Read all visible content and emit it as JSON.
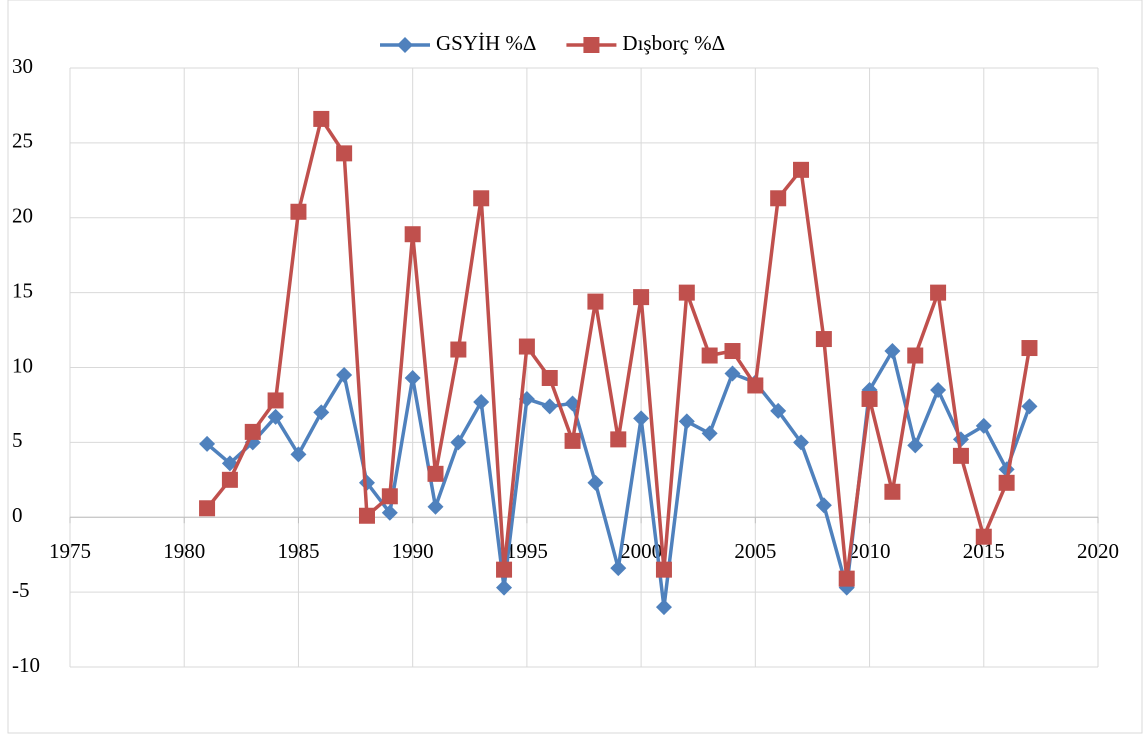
{
  "chart_data": {
    "type": "line",
    "x": [
      1981,
      1982,
      1983,
      1984,
      1985,
      1986,
      1987,
      1988,
      1989,
      1990,
      1991,
      1992,
      1993,
      1994,
      1995,
      1996,
      1997,
      1998,
      1999,
      2000,
      2001,
      2002,
      2003,
      2004,
      2005,
      2006,
      2007,
      2008,
      2009,
      2010,
      2011,
      2012,
      2013,
      2014,
      2015,
      2016,
      2017
    ],
    "series": [
      {
        "name": "GSYİH %Δ",
        "color": "#4f81bd",
        "marker": "diamond",
        "values": [
          4.9,
          3.6,
          5.0,
          6.7,
          4.2,
          7.0,
          9.5,
          2.3,
          0.3,
          9.3,
          0.7,
          5.0,
          7.7,
          -4.7,
          7.9,
          7.4,
          7.6,
          2.3,
          -3.4,
          6.6,
          -6.0,
          6.4,
          5.6,
          9.6,
          9.0,
          7.1,
          5.0,
          0.8,
          -4.7,
          8.5,
          11.1,
          4.8,
          8.5,
          5.2,
          6.1,
          3.2,
          7.4
        ]
      },
      {
        "name": "Dışborç %Δ",
        "color": "#c0504d",
        "marker": "square",
        "values": [
          0.6,
          2.5,
          5.7,
          7.8,
          20.4,
          26.6,
          24.3,
          0.1,
          1.4,
          18.9,
          2.9,
          11.2,
          21.3,
          -3.5,
          11.4,
          9.3,
          5.1,
          14.4,
          5.2,
          14.7,
          -3.5,
          15.0,
          10.8,
          11.1,
          8.8,
          21.3,
          23.2,
          11.9,
          -4.1,
          7.9,
          1.7,
          10.8,
          15.0,
          4.1,
          -1.3,
          2.3,
          11.3
        ]
      }
    ],
    "xlim": [
      1975,
      2020
    ],
    "xticks": [
      1975,
      1980,
      1985,
      1990,
      1995,
      2000,
      2005,
      2010,
      2015,
      2020
    ],
    "ylim": [
      -10,
      30
    ],
    "yticks": [
      -10,
      -5,
      0,
      5,
      10,
      15,
      20,
      25,
      30
    ],
    "grid": true,
    "legend": "top"
  }
}
